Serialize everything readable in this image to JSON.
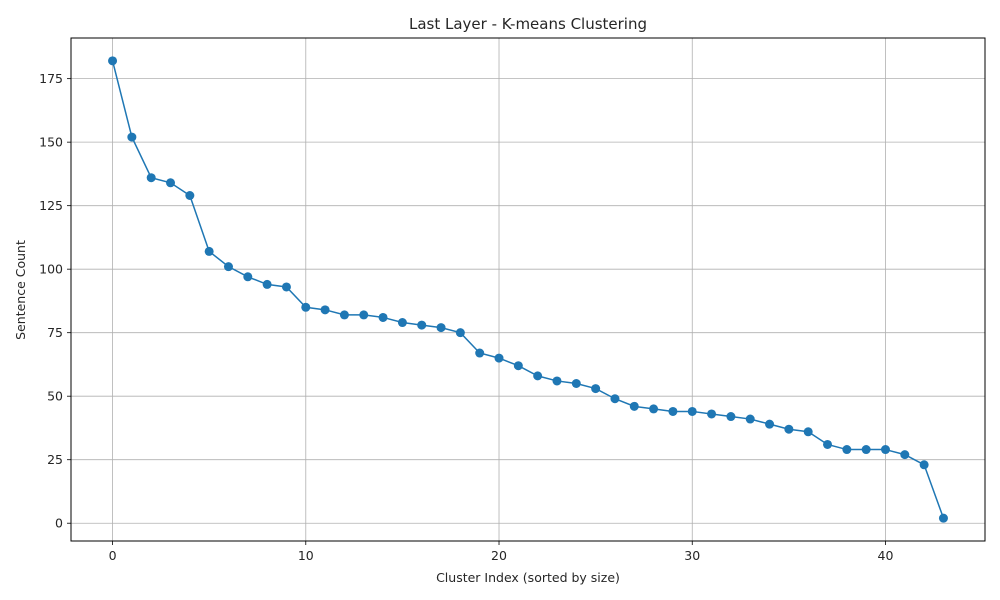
{
  "chart_data": {
    "type": "line",
    "title": "Last Layer - K-means Clustering",
    "xlabel": "Cluster Index (sorted by size)",
    "ylabel": "Sentence Count",
    "xlim": [
      -2.15,
      45.15
    ],
    "ylim": [
      -7.0,
      191.0
    ],
    "xticks": [
      0,
      10,
      20,
      30,
      40
    ],
    "yticks": [
      0,
      25,
      50,
      75,
      100,
      125,
      150,
      175
    ],
    "grid": true,
    "marker": "circle",
    "line_color": "#1f77b4",
    "series": [
      {
        "x": [
          0,
          1,
          2,
          3,
          4,
          5,
          6,
          7,
          8,
          9,
          10,
          11,
          12,
          13,
          14,
          15,
          16,
          17,
          18,
          19,
          20,
          21,
          22,
          23,
          24,
          25,
          26,
          27,
          28,
          29,
          30,
          31,
          32,
          33,
          34,
          35,
          36,
          37,
          38,
          39,
          40,
          41,
          42,
          43
        ],
        "values": [
          182,
          152,
          136,
          134,
          129,
          107,
          101,
          97,
          94,
          93,
          85,
          84,
          82,
          82,
          81,
          79,
          78,
          77,
          75,
          67,
          65,
          62,
          58,
          56,
          55,
          53,
          49,
          46,
          45,
          44,
          44,
          43,
          42,
          41,
          39,
          37,
          36,
          31,
          29,
          29,
          29,
          27,
          23,
          2
        ]
      }
    ]
  }
}
